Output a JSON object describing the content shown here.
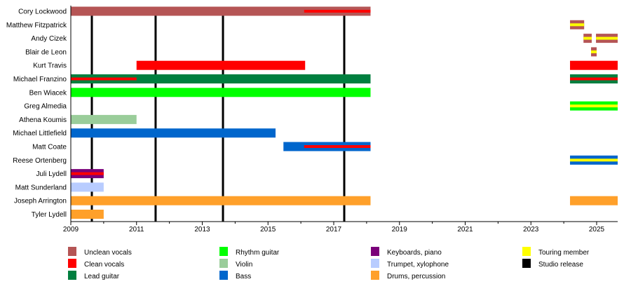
{
  "chart_data": {
    "type": "timeline",
    "xlim": [
      2009,
      2025.7
    ],
    "x_ticks": [
      2009,
      2011,
      2013,
      2015,
      2017,
      2019,
      2021,
      2023,
      2025
    ],
    "grid": false,
    "legend_placement": "bottom",
    "roles": {
      "unclean": {
        "label": "Unclean vocals",
        "color": "#B55555"
      },
      "clean": {
        "label": "Clean vocals",
        "color": "#FF0000"
      },
      "lead": {
        "label": "Lead guitar",
        "color": "#007F3F"
      },
      "rhythm": {
        "label": "Rhythm guitar",
        "color": "#00FF00"
      },
      "violin": {
        "label": "Violin",
        "color": "#9ACD9A"
      },
      "bass": {
        "label": "Bass",
        "color": "#0066CC"
      },
      "keys": {
        "label": "Keyboards, piano",
        "color": "#7A007A"
      },
      "trumpet": {
        "label": "Trumpet, xylophone",
        "color": "#B8CCFF"
      },
      "drums": {
        "label": "Drums, percussion",
        "color": "#FFA02A"
      },
      "touring": {
        "label": "Touring member",
        "color": "#FFFF00"
      },
      "studio": {
        "label": "Studio release",
        "color": "#000000"
      }
    },
    "legend_order": [
      "unclean",
      "clean",
      "lead",
      "rhythm",
      "violin",
      "bass",
      "keys",
      "trumpet",
      "drums",
      "touring",
      "studio"
    ],
    "studio_releases": [
      2009.64,
      2011.58,
      2013.63,
      2017.32
    ],
    "members": [
      {
        "name": "Cory Lockwood",
        "bars": [
          {
            "role": "unclean",
            "start": 2009,
            "end": 2018.12,
            "stripe": "clean",
            "stripe_start": 2016.1
          }
        ]
      },
      {
        "name": "Matthew Fitzpatrick",
        "bars": [
          {
            "role": "unclean",
            "start": 2024.19,
            "end": 2024.62,
            "stripe": "touring"
          }
        ]
      },
      {
        "name": "Andy Cizek",
        "bars": [
          {
            "role": "unclean",
            "start": 2024.6,
            "end": 2024.85,
            "stripe": "touring"
          },
          {
            "role": "unclean",
            "start": 2024.98,
            "end": 2025.64,
            "stripe": "touring"
          }
        ]
      },
      {
        "name": "Blair de Leon",
        "bars": [
          {
            "role": "unclean",
            "start": 2024.83,
            "end": 2025.0,
            "stripe": "touring"
          }
        ]
      },
      {
        "name": "Kurt Travis",
        "bars": [
          {
            "role": "clean",
            "start": 2011.0,
            "end": 2016.13
          },
          {
            "role": "clean",
            "start": 2024.19,
            "end": 2025.64
          }
        ]
      },
      {
        "name": "Michael Franzino",
        "bars": [
          {
            "role": "lead",
            "start": 2009,
            "end": 2018.12,
            "stripe": "clean",
            "stripe_end": 2011.0
          },
          {
            "role": "lead",
            "start": 2024.19,
            "end": 2025.64,
            "stripe": "clean"
          }
        ]
      },
      {
        "name": "Ben Wiacek",
        "bars": [
          {
            "role": "rhythm",
            "start": 2009,
            "end": 2018.12
          }
        ]
      },
      {
        "name": "Greg Almedia",
        "bars": [
          {
            "role": "rhythm",
            "start": 2024.19,
            "end": 2025.64,
            "stripe": "touring"
          }
        ]
      },
      {
        "name": "Athena Koumis",
        "bars": [
          {
            "role": "violin",
            "start": 2009,
            "end": 2011.0
          }
        ]
      },
      {
        "name": "Michael Littlefield",
        "bars": [
          {
            "role": "bass",
            "start": 2009,
            "end": 2015.23
          }
        ]
      },
      {
        "name": "Matt Coate",
        "bars": [
          {
            "role": "bass",
            "start": 2015.47,
            "end": 2018.12,
            "stripe": "clean",
            "stripe_start": 2016.1
          }
        ]
      },
      {
        "name": "Reese Ortenberg",
        "bars": [
          {
            "role": "bass",
            "start": 2024.19,
            "end": 2025.64,
            "stripe": "touring"
          }
        ]
      },
      {
        "name": "Juli Lydell",
        "bars": [
          {
            "role": "keys",
            "start": 2009,
            "end": 2010.0,
            "stripe": "clean"
          }
        ]
      },
      {
        "name": "Matt Sunderland",
        "bars": [
          {
            "role": "trumpet",
            "start": 2009,
            "end": 2010.0
          }
        ]
      },
      {
        "name": "Joseph Arrington",
        "bars": [
          {
            "role": "drums",
            "start": 2009,
            "end": 2018.12
          },
          {
            "role": "drums",
            "start": 2024.19,
            "end": 2025.64
          }
        ]
      },
      {
        "name": "Tyler Lydell",
        "bars": [
          {
            "role": "drums",
            "start": 2009,
            "end": 2010.0
          }
        ]
      }
    ]
  }
}
